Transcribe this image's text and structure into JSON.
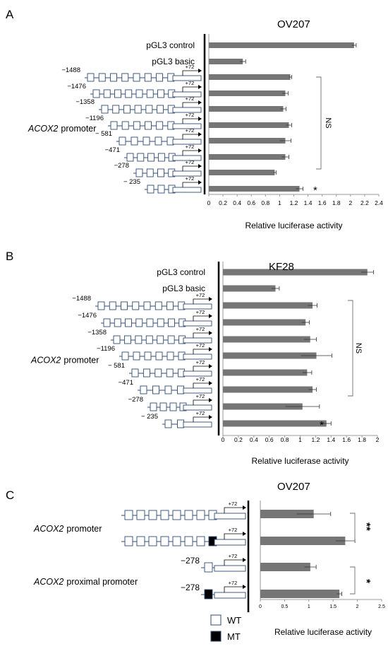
{
  "panels": [
    {
      "letter": "A",
      "title": "OV207",
      "control_label": "pGL3 control",
      "basic_label": "pGL3 basic",
      "promoter_label": "ACOX2",
      "promoter_suffix": "promoter",
      "constructs": [
        "−1488",
        "−1476",
        "−1358",
        "−1196",
        "− 581",
        "−471",
        "−278",
        "− 235"
      ],
      "plus_label": "+72",
      "ns_label": "NS",
      "star_label": "*"
    },
    {
      "letter": "B",
      "title": "KF28",
      "control_label": "pGL3 control",
      "basic_label": "pGL3 basic",
      "promoter_label": "ACOX2",
      "promoter_suffix": "promoter",
      "constructs": [
        "−1488",
        "−1476",
        "−1358",
        "−1196",
        "− 581",
        "−471",
        "−278",
        "− 235"
      ],
      "plus_label": "+72",
      "ns_label": "NS",
      "star_label": "*"
    },
    {
      "letter": "C",
      "title": "OV207",
      "promoter_label": "ACOX2",
      "promoter_suffix": "promoter",
      "proximal_suffix": "proximal promoter",
      "construct_278": "−278",
      "plus_label": "+72",
      "sig1": "**",
      "sig2": "*",
      "legend": [
        {
          "label": "WT",
          "fill": "#ffffff"
        },
        {
          "label": "MT",
          "fill": "#000000"
        }
      ]
    }
  ],
  "colors": {
    "bar": "#767676",
    "construct_outline": "#2f4a75",
    "bracket": "#6f6f6f"
  },
  "chart_data": [
    {
      "type": "bar",
      "orientation": "horizontal",
      "title": "OV207",
      "categories": [
        "pGL3 control",
        "pGL3 basic",
        "−1488",
        "−1476",
        "−1358",
        "−1196",
        "−581",
        "−471",
        "−278",
        "−235"
      ],
      "values": [
        2.05,
        0.48,
        1.15,
        1.08,
        1.05,
        1.13,
        1.08,
        1.08,
        0.93,
        1.28
      ],
      "errors": [
        0.03,
        0.04,
        0.02,
        0.04,
        0.04,
        0.04,
        0.08,
        0.05,
        0.02,
        0.05
      ],
      "xlabel": "Relative luciferase activity",
      "xlim": [
        0,
        2.4
      ],
      "ticks": [
        "0",
        "0.2",
        "0.4",
        "0.6",
        "0.8",
        "1",
        "1.2",
        "1.4",
        "1.6",
        "1.8",
        "2",
        "2.2",
        "2.4"
      ],
      "grid": false
    },
    {
      "type": "bar",
      "orientation": "horizontal",
      "title": "KF28",
      "categories": [
        "pGL3 control",
        "pGL3 basic",
        "−1488",
        "−1476",
        "−1358",
        "−1196",
        "−581",
        "−471",
        "−278",
        "−235"
      ],
      "values": [
        1.87,
        0.68,
        1.16,
        1.07,
        1.13,
        1.21,
        1.09,
        1.16,
        1.03,
        1.34
      ],
      "errors": [
        0.08,
        0.05,
        0.06,
        0.05,
        0.08,
        0.2,
        0.06,
        0.05,
        0.22,
        0.06
      ],
      "xlabel": "Relative luciferase activity",
      "xlim": [
        0,
        2
      ],
      "ticks": [
        "0",
        "0.2",
        "0.4",
        "0.6",
        "0.8",
        "1",
        "1.2",
        "1.4",
        "1.6",
        "1.8",
        "2"
      ],
      "grid": false
    },
    {
      "type": "bar",
      "orientation": "horizontal",
      "title": "OV207",
      "categories": [
        "ACOX2 promoter WT",
        "ACOX2 promoter MT",
        "ACOX2 proximal promoter WT",
        "ACOX2 proximal promoter MT"
      ],
      "values": [
        1.1,
        1.75,
        1.03,
        1.63
      ],
      "errors": [
        0.35,
        0.2,
        0.12,
        0.05
      ],
      "xlabel": "Relative luciferase activity",
      "xlim": [
        0,
        2.5
      ],
      "ticks": [
        "0",
        "0.5",
        "1",
        "1.5",
        "2",
        "2.5"
      ],
      "grid": false
    }
  ]
}
